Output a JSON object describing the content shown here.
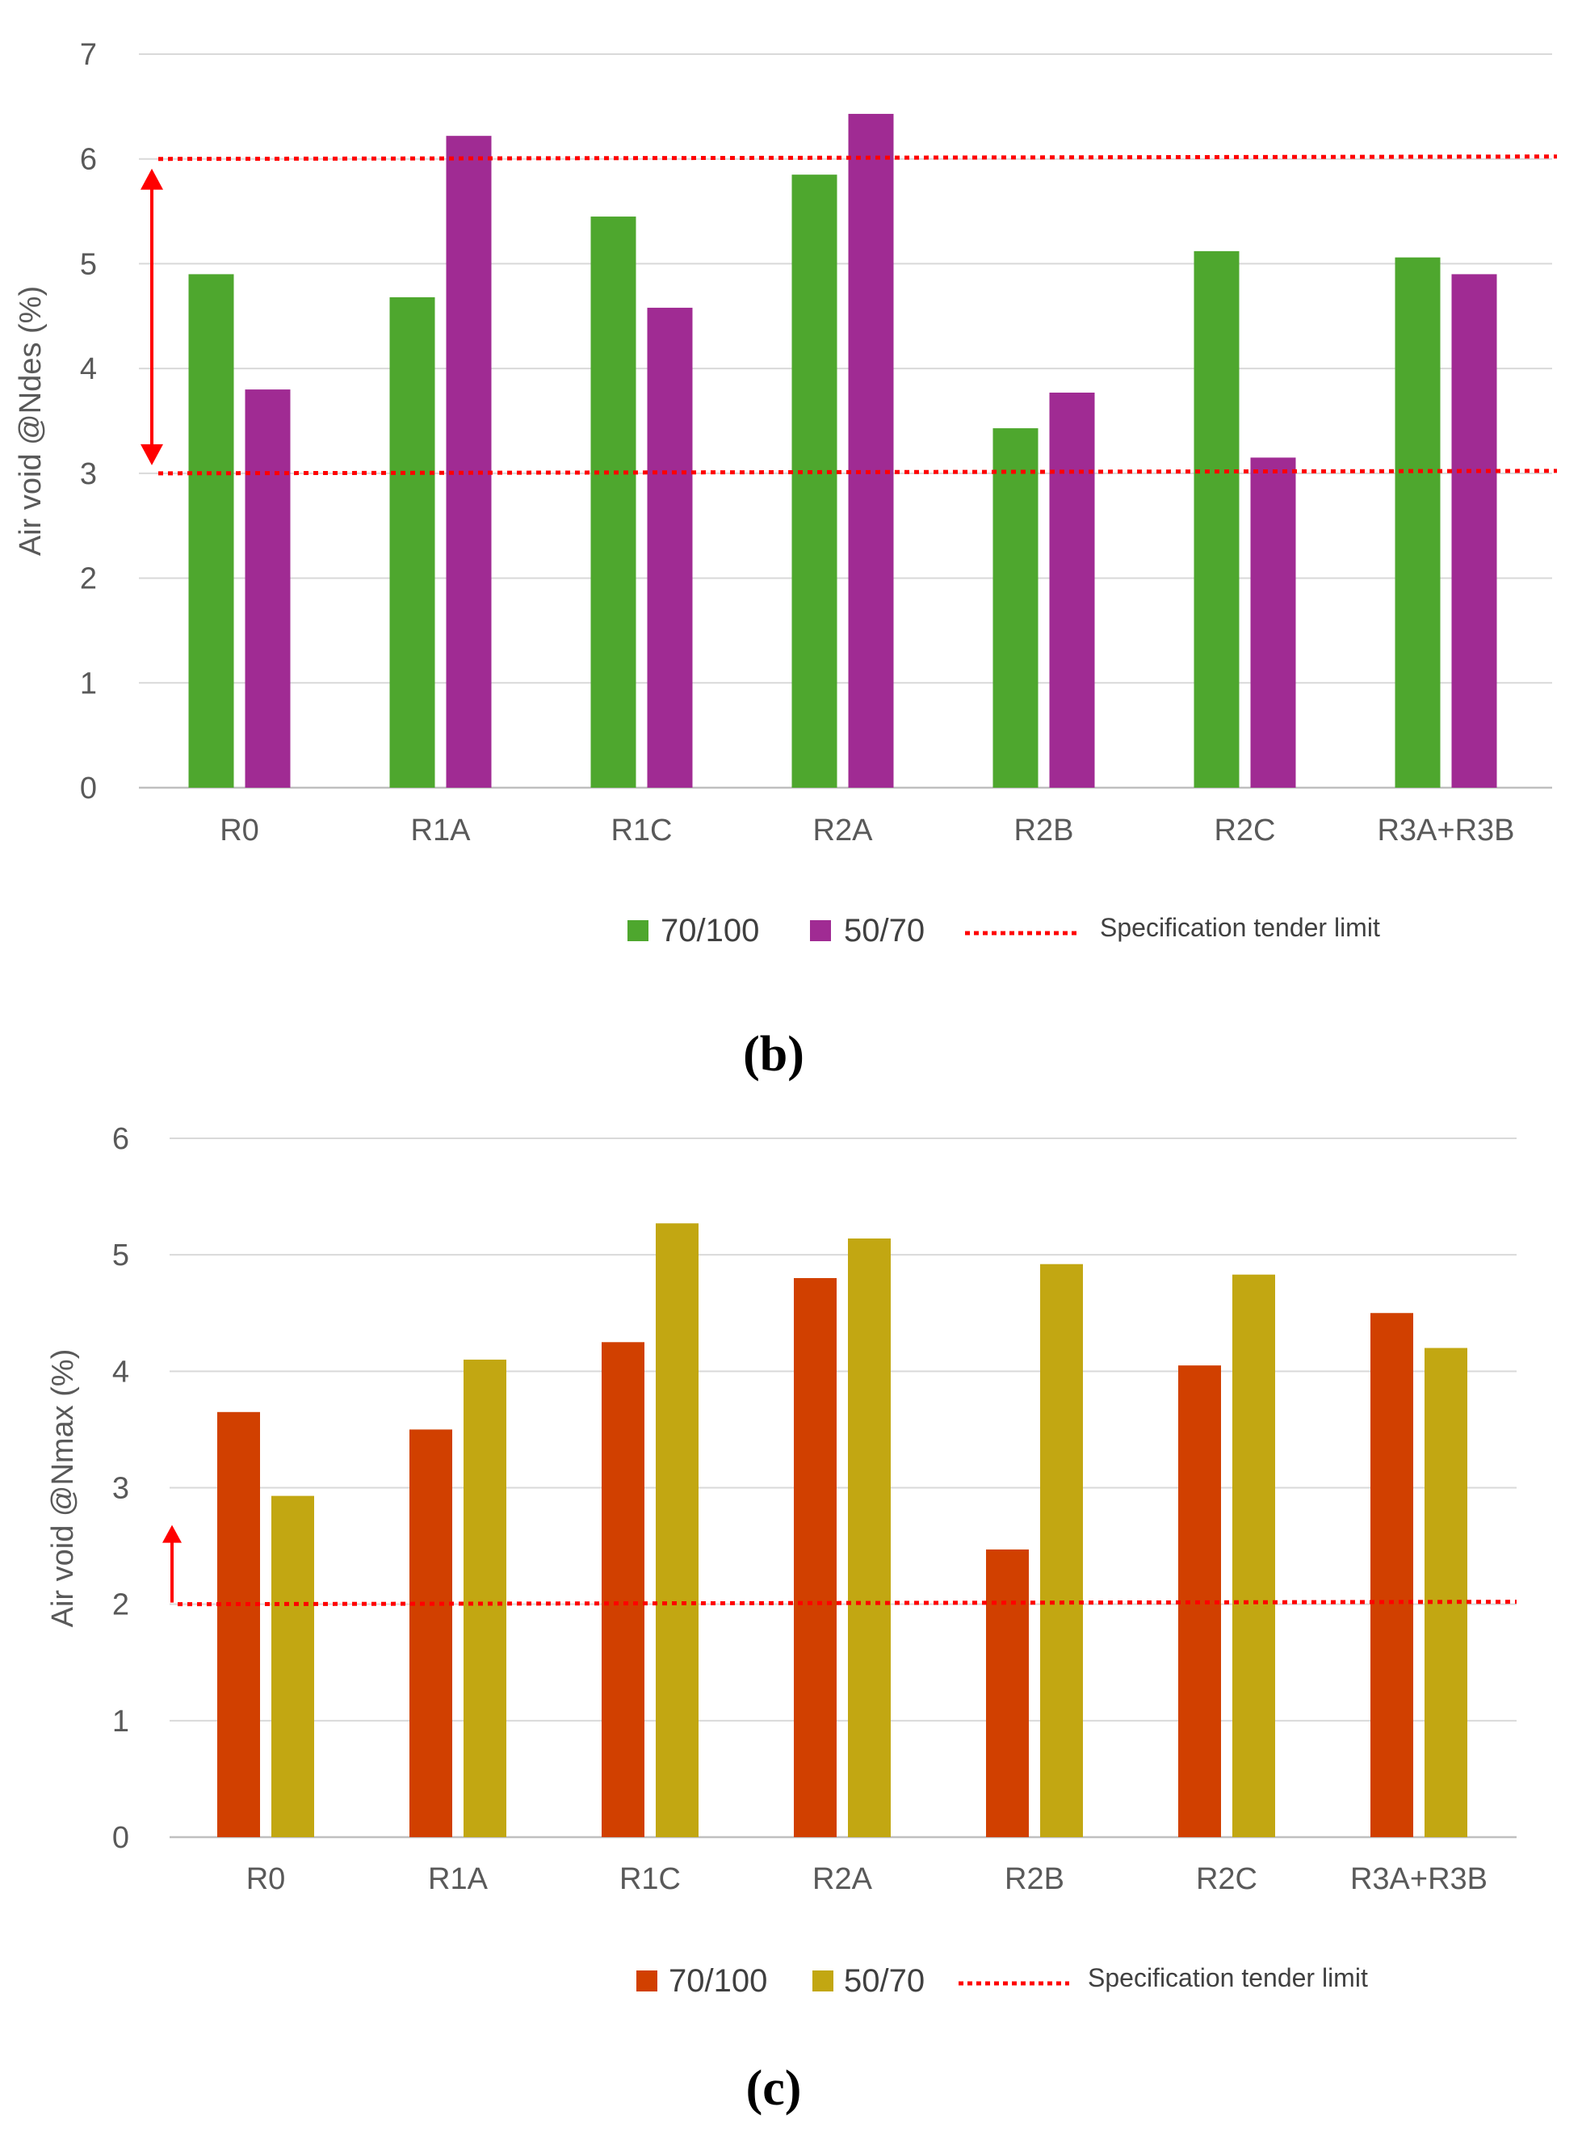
{
  "chart_data": [
    {
      "type": "bar",
      "caption": "(b)",
      "title": "",
      "xlabel": "",
      "ylabel": "Air void @Ndes (%)",
      "ylim": [
        0,
        7
      ],
      "yticks": [
        "0",
        "1",
        "2",
        "3",
        "4",
        "5",
        "6",
        "7"
      ],
      "grid": true,
      "categories": [
        "R0",
        "R1A",
        "R1C",
        "R2A",
        "R2B",
        "R2C",
        "R3A+R3B"
      ],
      "series": [
        {
          "name": "70/100",
          "color": "#4ea72e",
          "values": [
            4.9,
            4.68,
            5.45,
            5.85,
            3.43,
            5.12,
            5.06
          ]
        },
        {
          "name": "50/70",
          "color": "#a02b93",
          "values": [
            3.8,
            6.22,
            4.58,
            6.43,
            3.77,
            3.15,
            4.9
          ]
        }
      ],
      "limits": {
        "name": "Specification tender limit",
        "color": "#ff0000",
        "values": [
          3,
          6
        ],
        "range_arrow": "both"
      }
    },
    {
      "type": "bar",
      "caption": "(c)",
      "title": "",
      "xlabel": "",
      "ylabel": "Air void @Nmax (%)",
      "ylim": [
        0,
        6
      ],
      "yticks": [
        "0",
        "1",
        "2",
        "3",
        "4",
        "5",
        "6"
      ],
      "grid": true,
      "categories": [
        "R0",
        "R1A",
        "R1C",
        "R2A",
        "R2B",
        "R2C",
        "R3A+R3B"
      ],
      "series": [
        {
          "name": "70/100",
          "color": "#d14000",
          "values": [
            3.65,
            3.5,
            4.25,
            4.8,
            2.47,
            4.05,
            4.5
          ]
        },
        {
          "name": "50/70",
          "color": "#c2a712",
          "values": [
            2.93,
            4.1,
            5.27,
            5.14,
            4.92,
            4.83,
            4.2
          ]
        }
      ],
      "limits": {
        "name": "Specification tender limit",
        "color": "#ff0000",
        "values": [
          2
        ],
        "range_arrow": "up"
      }
    }
  ]
}
